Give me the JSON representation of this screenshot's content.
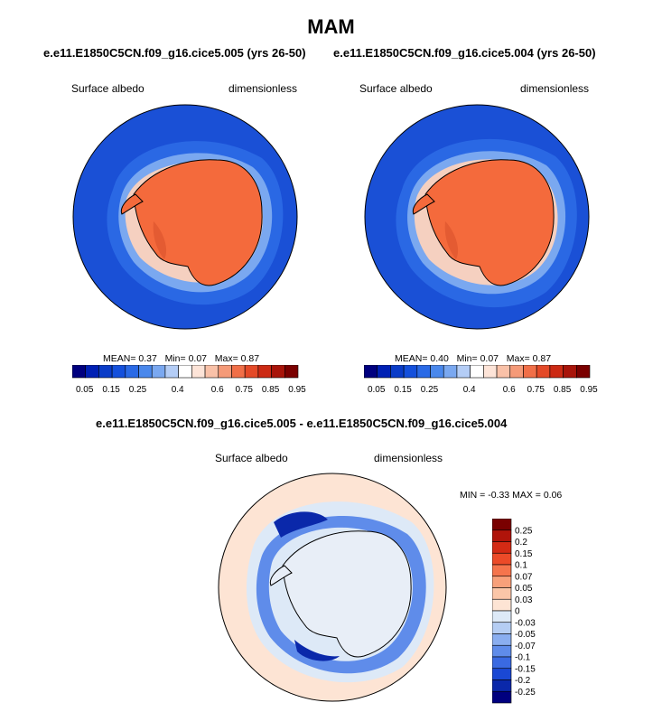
{
  "header": {
    "title": "MAM",
    "left_subtitle": "e.e11.E1850C5CN.f09_g16.cice5.005 (yrs 26-50)",
    "right_subtitle": "e.e11.E1850C5CN.f09_g16.cice5.004 (yrs 26-50)",
    "diff_subtitle": "e.e11.E1850C5CN.f09_g16.cice5.005 - e.e11.E1850C5CN.f09_g16.cice5.004"
  },
  "chart_data": [
    {
      "type": "heatmap",
      "projection": "south-polar-stereographic",
      "variable": "Surface albedo",
      "units": "dimensionless",
      "stats": {
        "mean": "0.37",
        "min": "0.07",
        "max": "0.87"
      },
      "stats_labels": {
        "mean": "MEAN=",
        "min": "Min=",
        "max": "Max="
      },
      "colorbar_levels": [
        "0.05",
        "0.1",
        "0.15",
        "0.2",
        "0.25",
        "0.3",
        "0.35",
        "0.4",
        "0.5",
        "0.55",
        "0.6",
        "0.7",
        "0.75",
        "0.8",
        "0.85",
        "0.9",
        "0.95"
      ],
      "colorbar_tick_labels": [
        "0.05",
        "0.15",
        "0.25",
        "0.4",
        "0.6",
        "0.75",
        "0.85",
        "0.95"
      ],
      "colorbar_colors": [
        "#00007f",
        "#0020b4",
        "#0a3cc8",
        "#1450dc",
        "#2a6ae6",
        "#4a88ec",
        "#7aa8f0",
        "#b4cdf6",
        "#ffffff",
        "#fde4d8",
        "#f9c1a8",
        "#f59a78",
        "#f16f48",
        "#e44a28",
        "#cc2a14",
        "#a8140a",
        "#7a0000"
      ],
      "colorbar_orientation": "horizontal"
    },
    {
      "type": "heatmap",
      "projection": "south-polar-stereographic",
      "variable": "Surface albedo",
      "units": "dimensionless",
      "stats": {
        "mean": "0.40",
        "min": "0.07",
        "max": "0.87"
      },
      "stats_labels": {
        "mean": "MEAN=",
        "min": "Min=",
        "max": "Max="
      },
      "colorbar_levels": [
        "0.05",
        "0.1",
        "0.15",
        "0.2",
        "0.25",
        "0.3",
        "0.35",
        "0.4",
        "0.5",
        "0.55",
        "0.6",
        "0.7",
        "0.75",
        "0.8",
        "0.85",
        "0.9",
        "0.95"
      ],
      "colorbar_tick_labels": [
        "0.05",
        "0.15",
        "0.25",
        "0.4",
        "0.6",
        "0.75",
        "0.85",
        "0.95"
      ],
      "colorbar_colors": [
        "#00007f",
        "#0020b4",
        "#0a3cc8",
        "#1450dc",
        "#2a6ae6",
        "#4a88ec",
        "#7aa8f0",
        "#b4cdf6",
        "#ffffff",
        "#fde4d8",
        "#f9c1a8",
        "#f59a78",
        "#f16f48",
        "#e44a28",
        "#cc2a14",
        "#a8140a",
        "#7a0000"
      ],
      "colorbar_orientation": "horizontal"
    },
    {
      "type": "heatmap",
      "projection": "south-polar-stereographic",
      "variable": "Surface albedo",
      "units": "dimensionless",
      "stats_text": {
        "min_label": "MIN =",
        "min": "-0.33",
        "max_label": "MAX =",
        "max": "0.06"
      },
      "colorbar_tick_labels": [
        "0.25",
        "0.2",
        "0.15",
        "0.1",
        "0.07",
        "0.05",
        "0.03",
        "0",
        "-0.03",
        "-0.05",
        "-0.07",
        "-0.1",
        "-0.15",
        "-0.2",
        "-0.25"
      ],
      "colorbar_colors": [
        "#7a0000",
        "#b0140a",
        "#d42a14",
        "#ec4a28",
        "#f5744c",
        "#f8a07a",
        "#fbc6a8",
        "#fde4d4",
        "#dde9f7",
        "#b5cdf3",
        "#8aaef0",
        "#5f8cea",
        "#3a6ae2",
        "#1a48d4",
        "#0a28aa",
        "#00007f"
      ],
      "colorbar_orientation": "vertical"
    }
  ]
}
